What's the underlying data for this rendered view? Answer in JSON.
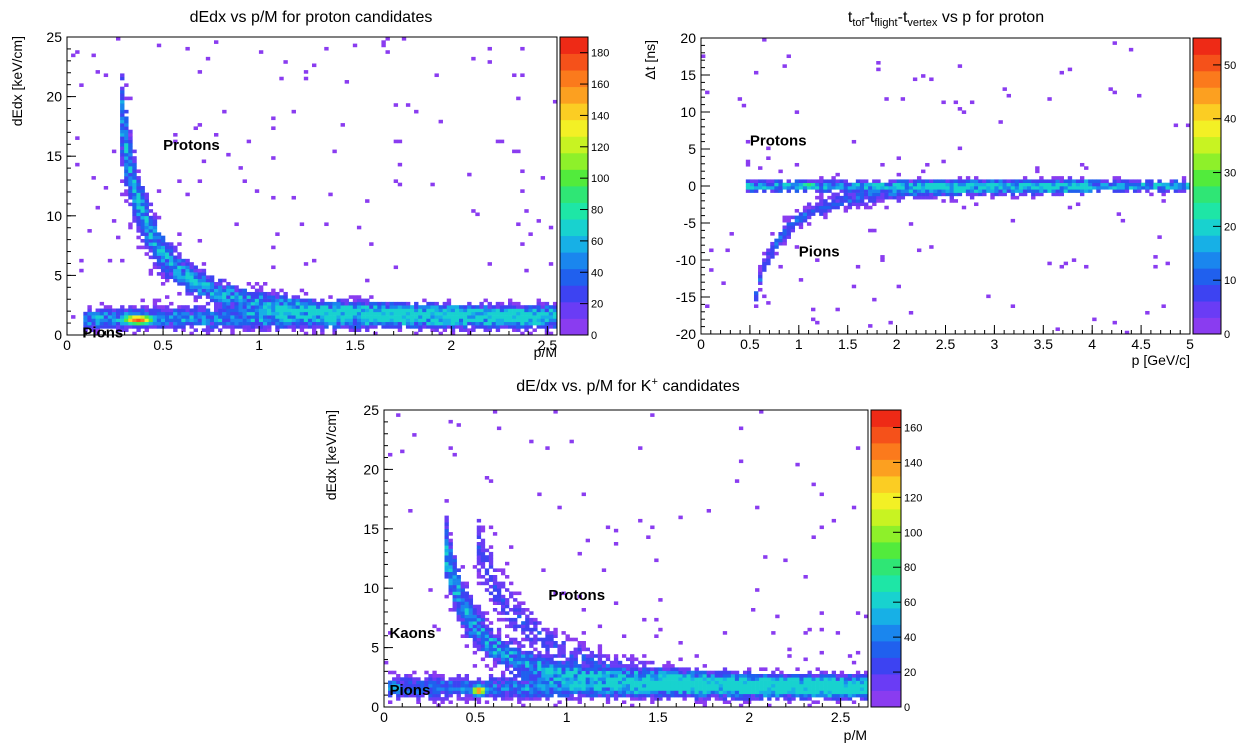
{
  "chart_data": [
    {
      "type": "heatmap",
      "title": "dEdx vs p/M for proton candidates",
      "xlabel": "p/M",
      "ylabel": "dEdx [keV/cm]",
      "xlim": [
        0,
        2.55
      ],
      "ylim": [
        0,
        25
      ],
      "xticks": [
        0,
        0.5,
        1,
        1.5,
        2,
        2.5
      ],
      "xtick_labels": [
        "0",
        "0.5",
        "1",
        "1.5",
        "2",
        "2.5"
      ],
      "yticks": [
        0,
        5,
        10,
        15,
        20,
        25
      ],
      "ytick_labels": [
        "0",
        "5",
        "10",
        "15",
        "20",
        "25"
      ],
      "colorbar": {
        "min": 0,
        "max": 190,
        "ticks": [
          0,
          20,
          40,
          60,
          80,
          100,
          120,
          140,
          160,
          180
        ],
        "tick_labels": [
          "0",
          "20",
          "40",
          "60",
          "80",
          "100",
          "120",
          "140",
          "160",
          "180"
        ]
      },
      "annotations": [
        {
          "text": "Protons",
          "x": 0.5,
          "y": 15.5
        },
        {
          "text": "Pions",
          "x": 0.08,
          "y": -0.2
        }
      ],
      "bands": [
        {
          "kind": "bethe",
          "A": 1.35,
          "B": 0.25,
          "x0": 0.28,
          "x1": 2.55,
          "intensity": 1.0
        },
        {
          "kind": "flat",
          "y": 1.4,
          "sigma": 0.6,
          "x0": 0.08,
          "x1": 2.55,
          "intensity": 0.9
        },
        {
          "kind": "blob",
          "x": 0.37,
          "y": 1.3,
          "sx": 0.06,
          "sy": 0.3,
          "peak": 180
        }
      ],
      "grid": false
    },
    {
      "type": "heatmap",
      "title_parts": {
        "t1": "t",
        "s1": "tof",
        "t2": "-t",
        "s2": "flight",
        "t3": "-t",
        "s3": "vertex",
        "t4": " vs p for proton"
      },
      "xlabel": "p [GeV/c]",
      "ylabel": "Δt [ns]",
      "xlim": [
        0,
        5
      ],
      "ylim": [
        -20,
        20
      ],
      "xticks": [
        0,
        0.5,
        1,
        1.5,
        2,
        2.5,
        3,
        3.5,
        4,
        4.5,
        5
      ],
      "xtick_labels": [
        "0",
        "0.5",
        "1",
        "1.5",
        "2",
        "2.5",
        "3",
        "3.5",
        "4",
        "4.5",
        "5"
      ],
      "yticks": [
        -20,
        -15,
        -10,
        -5,
        0,
        5,
        10,
        15,
        20
      ],
      "ytick_labels": [
        "-20",
        "-15",
        "-10",
        "-5",
        "0",
        "5",
        "10",
        "15",
        "20"
      ],
      "colorbar": {
        "min": 0,
        "max": 55,
        "ticks": [
          0,
          10,
          20,
          30,
          40,
          50
        ],
        "tick_labels": [
          "0",
          "10",
          "20",
          "30",
          "40",
          "50"
        ]
      },
      "annotations": [
        {
          "text": "Protons",
          "x": 0.5,
          "y": 5.5
        },
        {
          "text": "Pions",
          "x": 1.0,
          "y": -9.5
        }
      ],
      "bands": [
        {
          "kind": "flat",
          "y": 0,
          "sigma": 0.5,
          "x0": 0.45,
          "x1": 5.0,
          "intensity": 1.0
        },
        {
          "kind": "pion_tof",
          "x0": 0.55,
          "x1": 4.0,
          "intensity": 0.6
        },
        {
          "kind": "blob",
          "x": 1.1,
          "y": 0.1,
          "sx": 0.08,
          "sy": 0.3,
          "peak": 28
        },
        {
          "kind": "blob",
          "x": 2.5,
          "y": 0.0,
          "sx": 0.4,
          "sy": 0.3,
          "peak": 18
        }
      ],
      "grid": false
    },
    {
      "type": "heatmap",
      "title_parts": {
        "t1": "dE/dx vs. p/M for K",
        "sup": "+",
        "t2": " candidates"
      },
      "xlabel": "p/M",
      "ylabel": "dEdx [keV/cm]",
      "xlim": [
        0,
        2.65
      ],
      "ylim": [
        0,
        25
      ],
      "xticks": [
        0,
        0.5,
        1,
        1.5,
        2,
        2.5
      ],
      "xtick_labels": [
        "0",
        "0.5",
        "1",
        "1.5",
        "2",
        "2.5"
      ],
      "yticks": [
        0,
        5,
        10,
        15,
        20,
        25
      ],
      "ytick_labels": [
        "0",
        "5",
        "10",
        "15",
        "20",
        "25"
      ],
      "colorbar": {
        "min": 0,
        "max": 170,
        "ticks": [
          0,
          20,
          40,
          60,
          80,
          100,
          120,
          140,
          160
        ],
        "tick_labels": [
          "0",
          "20",
          "40",
          "60",
          "80",
          "100",
          "120",
          "140",
          "160"
        ]
      },
      "annotations": [
        {
          "text": "Protons",
          "x": 0.9,
          "y": 9.0
        },
        {
          "text": "Kaons",
          "x": 0.03,
          "y": 5.8
        },
        {
          "text": "Pions",
          "x": 0.03,
          "y": 1.0
        }
      ],
      "bands": [
        {
          "kind": "bethe",
          "A": 1.35,
          "B": 0.25,
          "x0": 0.33,
          "x1": 2.65,
          "intensity": 1.0
        },
        {
          "kind": "bethe",
          "A": 1.35,
          "B": 0.25,
          "x0": 0.5,
          "x1": 2.65,
          "xscale": 1.55,
          "intensity": 0.45
        },
        {
          "kind": "flat",
          "y": 1.6,
          "sigma": 0.6,
          "x0": 0.03,
          "x1": 2.65,
          "intensity": 0.8
        },
        {
          "kind": "blob",
          "x": 0.52,
          "y": 1.4,
          "sx": 0.03,
          "sy": 0.3,
          "peak": 150
        }
      ],
      "grid": false
    }
  ]
}
